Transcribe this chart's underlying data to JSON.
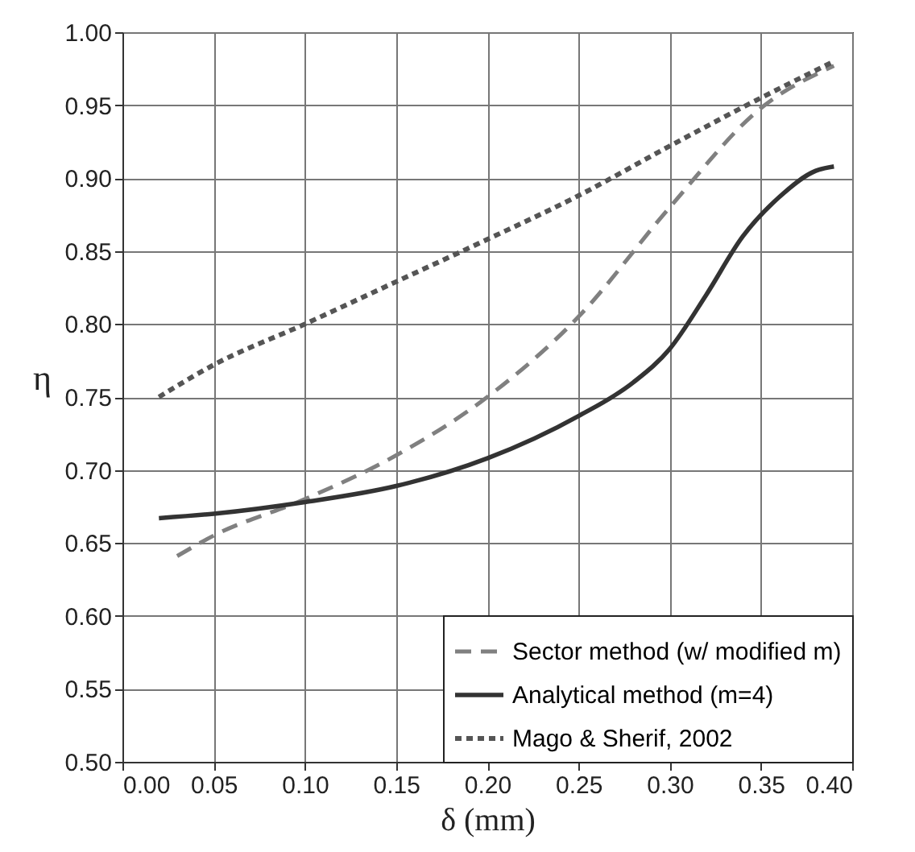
{
  "chart_data": {
    "type": "line",
    "xlabel": "δ (mm)",
    "ylabel": "η",
    "xlim": [
      0,
      0.4
    ],
    "ylim": [
      0.5,
      1
    ],
    "xticks": [
      {
        "value": 0,
        "label": "0.00"
      },
      {
        "value": 0.05,
        "label": "0.05"
      },
      {
        "value": 0.1,
        "label": "0.10"
      },
      {
        "value": 0.15,
        "label": "0.15"
      },
      {
        "value": 0.2,
        "label": "0.20"
      },
      {
        "value": 0.25,
        "label": "0.25"
      },
      {
        "value": 0.3,
        "label": "0.30"
      },
      {
        "value": 0.35,
        "label": "0.35"
      },
      {
        "value": 0.4,
        "label": "0.40"
      }
    ],
    "yticks": [
      {
        "value": 0.5,
        "label": "0.50"
      },
      {
        "value": 0.55,
        "label": "0.55"
      },
      {
        "value": 0.6,
        "label": "0.60"
      },
      {
        "value": 0.65,
        "label": "0.65"
      },
      {
        "value": 0.7,
        "label": "0.70"
      },
      {
        "value": 0.75,
        "label": "0.75"
      },
      {
        "value": 0.8,
        "label": "0.80"
      },
      {
        "value": 0.85,
        "label": "0.85"
      },
      {
        "value": 0.9,
        "label": "0.90"
      },
      {
        "value": 0.95,
        "label": "0.95"
      },
      {
        "value": 1,
        "label": "1.00"
      }
    ],
    "grid": true,
    "legend": "bottom right",
    "marker": "none",
    "series": [
      {
        "name": "Sector method (w/ modified m)",
        "color": "#808080",
        "line_style": "dashed",
        "x": [
          0.03,
          0.05,
          0.1,
          0.15,
          0.2,
          0.25,
          0.3,
          0.35,
          0.39
        ],
        "values": [
          0.641,
          0.655,
          0.68,
          0.71,
          0.75,
          0.805,
          0.88,
          0.948,
          0.977
        ]
      },
      {
        "name": "Analytical method (m=4)",
        "color": "#333333",
        "line_style": "solid",
        "x": [
          0.02,
          0.05,
          0.1,
          0.15,
          0.2,
          0.25,
          0.28,
          0.3,
          0.32,
          0.34,
          0.36,
          0.38,
          0.39
        ],
        "values": [
          0.667,
          0.67,
          0.678,
          0.689,
          0.708,
          0.737,
          0.76,
          0.783,
          0.82,
          0.86,
          0.887,
          0.905,
          0.908
        ]
      },
      {
        "name": "Mago & Sherif, 2002",
        "color": "#555555",
        "line_style": "dotted",
        "x": [
          0.02,
          0.05,
          0.1,
          0.15,
          0.2,
          0.25,
          0.3,
          0.35,
          0.39
        ],
        "values": [
          0.75,
          0.772,
          0.8,
          0.829,
          0.858,
          0.888,
          0.922,
          0.955,
          0.98
        ]
      }
    ]
  }
}
